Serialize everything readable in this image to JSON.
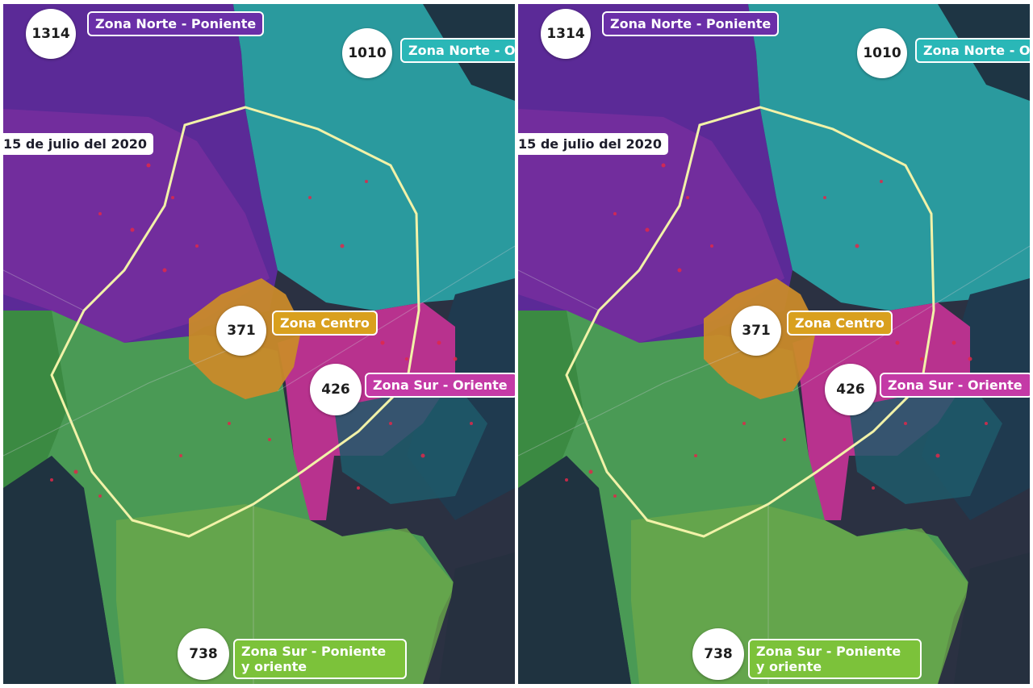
{
  "date_label": "15 de julio del 2020",
  "zones": {
    "norte_poniente": {
      "count": "1314",
      "name": "Zona Norte - Poniente",
      "color": "#6a2fa8"
    },
    "norte_oriente": {
      "count": "1010",
      "name": "Zona Norte - O",
      "color": "#2ab7b7"
    },
    "centro": {
      "count": "371",
      "name": "Zona Centro",
      "color": "#d9a01e"
    },
    "sur_oriente": {
      "count": "426",
      "name": "Zona Sur - Oriente",
      "color": "#c43aa6"
    },
    "sur_poniente": {
      "count": "738",
      "name_line1": "Zona Sur - Poniente",
      "name_line2": "y oriente",
      "color": "#7cc23a"
    }
  },
  "map_colors": {
    "background": "#2b3142",
    "ring_road": "#f2f2a8",
    "case_dots": "#e0284a"
  },
  "panels": [
    "left",
    "right"
  ]
}
